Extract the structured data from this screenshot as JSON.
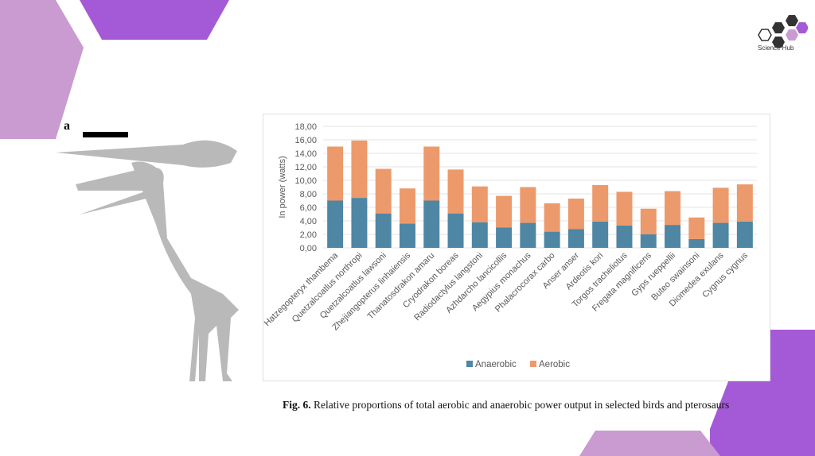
{
  "logo": {
    "text": "Science Hub"
  },
  "figure": {
    "label": "a",
    "caption_bold": "Fig. 6.",
    "caption": " Relative proportions of total aerobic and anaerobic power output in selected birds and pterosaurs"
  },
  "colors": {
    "anaerobic": "#4e86a4",
    "aerobic": "#ec9a6b",
    "purple": "#a45ad6",
    "lilac": "#c99bd0"
  },
  "chart_data": {
    "type": "bar",
    "stacked": true,
    "title": "",
    "xlabel": "",
    "ylabel": "In power (watts)",
    "ylim": [
      0,
      18
    ],
    "yticks": [
      "0,00",
      "2,00",
      "4,00",
      "6,00",
      "8,00",
      "10,00",
      "12,00",
      "14,00",
      "16,00",
      "18,00"
    ],
    "grid": true,
    "legend_position": "bottom",
    "categories": [
      "Hatzegopteryx thambema",
      "Quetzalcoatlus northropi",
      "Quetzalcoatlus lawsoni",
      "Zhejiangopterus linhaiensis",
      "Thanatosdrakon amaru",
      "Cryodrakon boreas",
      "Radiodactylus langstoni",
      "Azhdarcho lancicollis",
      "Aegypius monachus",
      "Phalacrocorax carbo",
      "Anser anser",
      "Ardeotis kori",
      "Torgos tracheliotus",
      "Fregata magnificens",
      "Gyps rueppellii",
      "Buteo swainsoni",
      "Diomedea exulans",
      "Cygnus cygnus"
    ],
    "series": [
      {
        "name": "Anaerobic",
        "values": [
          7.0,
          7.4,
          5.1,
          3.6,
          7.0,
          5.1,
          3.8,
          3.0,
          3.7,
          2.4,
          2.8,
          3.9,
          3.3,
          2.0,
          3.4,
          1.3,
          3.7,
          3.9
        ]
      },
      {
        "name": "Aerobic",
        "values": [
          8.0,
          8.5,
          6.6,
          5.2,
          8.0,
          6.5,
          5.3,
          4.7,
          5.3,
          4.2,
          4.5,
          5.4,
          5.0,
          3.8,
          5.0,
          3.2,
          5.2,
          5.5
        ]
      }
    ]
  }
}
